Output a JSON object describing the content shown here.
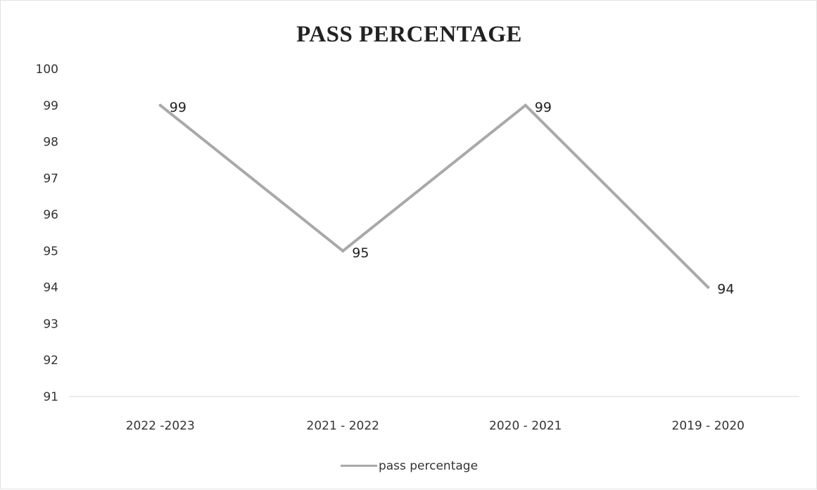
{
  "chart_data": {
    "type": "line",
    "title": "PASS PERCENTAGE",
    "xlabel": "",
    "ylabel": "",
    "categories": [
      "2022 -2023",
      "2021 - 2022",
      "2020 - 2021",
      "2019 - 2020"
    ],
    "series": [
      {
        "name": "pass percentage",
        "values": [
          99,
          95,
          99,
          94
        ],
        "color": "#a9a9a9"
      }
    ],
    "ylim": [
      91,
      100
    ],
    "yticks": [
      91,
      92,
      93,
      94,
      95,
      96,
      97,
      98,
      99,
      100
    ],
    "data_labels": true,
    "grid": false,
    "legend_position": "bottom"
  }
}
